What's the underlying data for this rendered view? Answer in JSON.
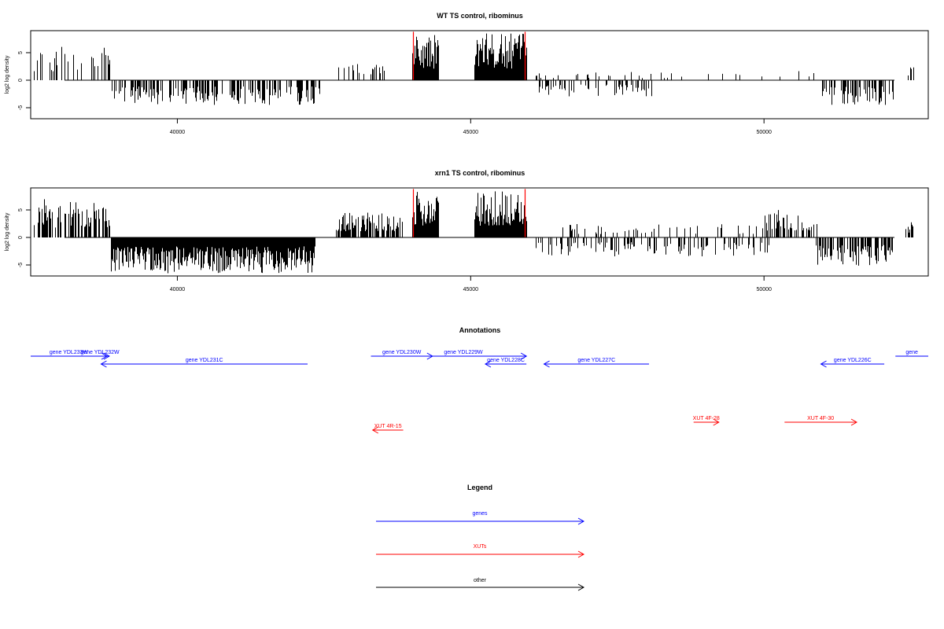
{
  "chart_data": [
    {
      "type": "bar",
      "title": "WT TS control, ribominus",
      "ylabel": "log2 log density",
      "xlim": [
        37500,
        52800
      ],
      "ylim": [
        -7,
        9
      ],
      "x_ticks": [
        40000,
        45000,
        50000
      ],
      "y_ticks": [
        -5,
        0,
        5
      ],
      "grid": false,
      "baseline": 0,
      "colors": {
        "default": "#000000",
        "highlight": "#ff0000"
      },
      "highlight_x": [
        44020,
        45920
      ],
      "segments": [
        {
          "from": 37550,
          "to": 38860,
          "strand": "plus",
          "density": 0.35,
          "max": 6.5,
          "peak": 6.5
        },
        {
          "from": 38860,
          "to": 42450,
          "strand": "minus",
          "density": 0.45,
          "max": 4.5,
          "peak": 4.5
        },
        {
          "from": 42650,
          "to": 43550,
          "strand": "plus",
          "density": 0.35,
          "max": 3.2,
          "peak": 3.2
        },
        {
          "from": 44000,
          "to": 44450,
          "strand": "plus",
          "density": 1.0,
          "max": 8.3,
          "peak": 8.3
        },
        {
          "from": 45050,
          "to": 45950,
          "strand": "plus",
          "density": 1.0,
          "max": 8.5,
          "peak": 8.5
        },
        {
          "from": 46100,
          "to": 48100,
          "strand": "minus",
          "density": 0.25,
          "max": 3.0,
          "peak": 3.0
        },
        {
          "from": 46100,
          "to": 48600,
          "strand": "plus",
          "density": 0.1,
          "max": 1.5,
          "peak": 1.5
        },
        {
          "from": 49000,
          "to": 50900,
          "strand": "plus",
          "density": 0.08,
          "max": 1.8,
          "peak": 1.8
        },
        {
          "from": 50950,
          "to": 52200,
          "strand": "minus",
          "density": 0.5,
          "max": 4.5,
          "peak": 4.5
        },
        {
          "from": 52450,
          "to": 52550,
          "strand": "plus",
          "density": 0.6,
          "max": 2.5,
          "peak": 2.5
        }
      ]
    },
    {
      "type": "bar",
      "title": "xrn1 TS control, ribominus",
      "ylabel": "log2 log density",
      "xlim": [
        37500,
        52800
      ],
      "ylim": [
        -7,
        9
      ],
      "x_ticks": [
        40000,
        45000,
        50000
      ],
      "y_ticks": [
        -5,
        0,
        5
      ],
      "grid": false,
      "baseline": 0,
      "colors": {
        "default": "#000000",
        "highlight": "#ff0000"
      },
      "highlight_x": [
        44020,
        45920
      ],
      "segments": [
        {
          "from": 37550,
          "to": 38860,
          "strand": "plus",
          "density": 0.55,
          "max": 7.0,
          "peak": 7.0
        },
        {
          "from": 38860,
          "to": 42350,
          "strand": "minus",
          "density": 1.0,
          "max": 6.5,
          "peak": 6.5
        },
        {
          "from": 42700,
          "to": 43850,
          "strand": "plus",
          "density": 0.75,
          "max": 4.5,
          "peak": 4.5
        },
        {
          "from": 44000,
          "to": 44450,
          "strand": "plus",
          "density": 1.0,
          "max": 8.3,
          "peak": 8.3
        },
        {
          "from": 45050,
          "to": 45950,
          "strand": "plus",
          "density": 1.0,
          "max": 8.5,
          "peak": 8.5
        },
        {
          "from": 46100,
          "to": 50100,
          "strand": "minus",
          "density": 0.3,
          "max": 3.5,
          "peak": 3.5
        },
        {
          "from": 46500,
          "to": 50000,
          "strand": "plus",
          "density": 0.2,
          "max": 2.5,
          "peak": 2.5
        },
        {
          "from": 50000,
          "to": 50900,
          "strand": "plus",
          "density": 0.5,
          "max": 5.0,
          "peak": 5.0
        },
        {
          "from": 50850,
          "to": 52200,
          "strand": "minus",
          "density": 0.7,
          "max": 5.5,
          "peak": 5.5
        },
        {
          "from": 52400,
          "to": 52550,
          "strand": "plus",
          "density": 0.6,
          "max": 3.0,
          "peak": 3.0
        }
      ]
    },
    {
      "type": "other",
      "title": "Annotations",
      "xlim": [
        37500,
        52800
      ],
      "features": [
        {
          "label": "gene YDL233W",
          "kind": "gene",
          "start": 37500,
          "end": 38800,
          "direction": "right",
          "row": 0
        },
        {
          "label": "gene YDL232W",
          "kind": "gene",
          "start": 38520,
          "end": 38840,
          "direction": "right",
          "row": 0
        },
        {
          "label": "gene YDL231C",
          "kind": "gene",
          "start": 38700,
          "end": 42220,
          "direction": "left",
          "row": 1
        },
        {
          "label": "gene YDL230W",
          "kind": "gene",
          "start": 43300,
          "end": 44350,
          "direction": "right",
          "row": 0
        },
        {
          "label": "gene YDL229W",
          "kind": "gene",
          "start": 43800,
          "end": 45950,
          "direction": "right",
          "row": 0
        },
        {
          "label": "gene YDL228C",
          "kind": "gene",
          "start": 45250,
          "end": 45950,
          "direction": "left",
          "row": 1
        },
        {
          "label": "gene YDL227C",
          "kind": "gene",
          "start": 46250,
          "end": 48040,
          "direction": "left",
          "row": 1
        },
        {
          "label": "gene YDL226C",
          "kind": "gene",
          "start": 50970,
          "end": 52050,
          "direction": "left",
          "row": 1
        },
        {
          "label": "gene",
          "kind": "gene",
          "start": 52240,
          "end": 52800,
          "direction": "right",
          "row": 0
        },
        {
          "label": "XUT 4R-15",
          "kind": "xut",
          "start": 43330,
          "end": 43850,
          "direction": "left",
          "row": 2
        },
        {
          "label": "XUT 4F-28",
          "kind": "xut",
          "start": 48800,
          "end": 49230,
          "direction": "right",
          "row": 3
        },
        {
          "label": "XUT 4F-30",
          "kind": "xut",
          "start": 50350,
          "end": 51580,
          "direction": "right",
          "row": 3
        }
      ]
    },
    {
      "type": "other",
      "title": "Legend",
      "entries": [
        {
          "label": "genes",
          "color": "#0000ff"
        },
        {
          "label": "XUTs",
          "color": "#ff0000"
        },
        {
          "label": "other",
          "color": "#000000"
        }
      ]
    }
  ],
  "colors": {
    "gene": "#0000ff",
    "xut": "#ff0000",
    "other": "#000000",
    "axis": "#000000"
  }
}
